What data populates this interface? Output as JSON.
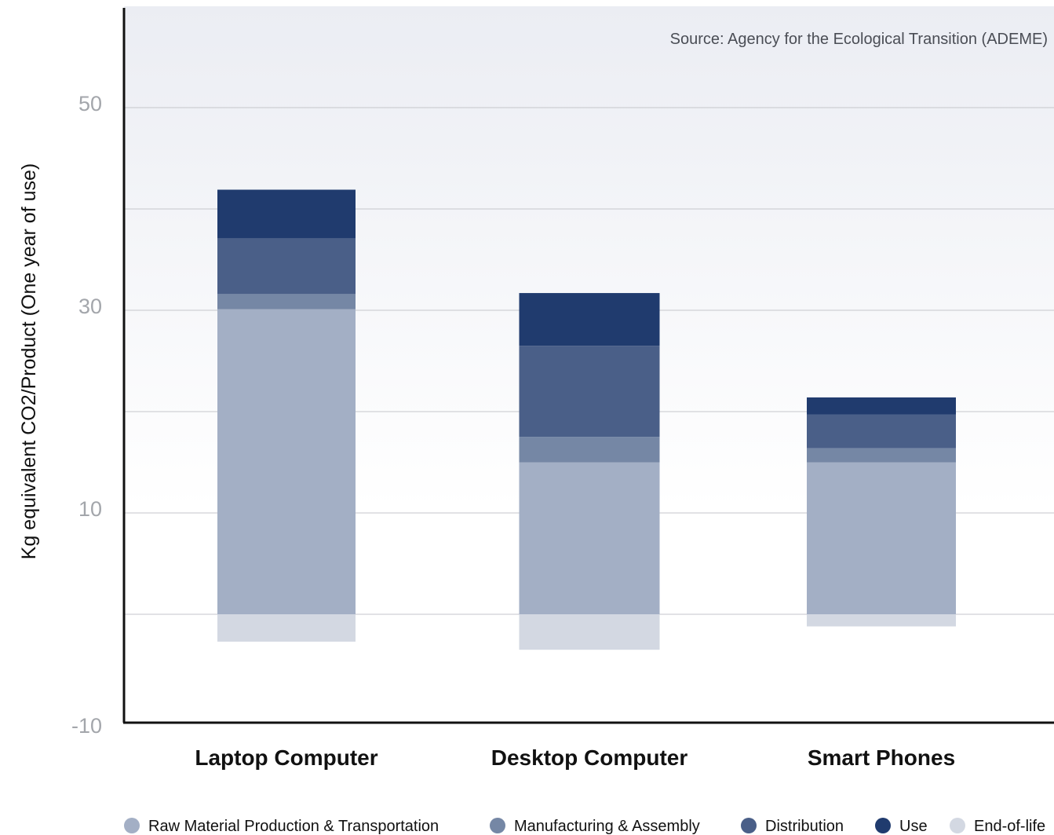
{
  "chart_data": {
    "type": "bar",
    "stacked": true,
    "categories": [
      "Laptop Computer",
      "Desktop Computer",
      "Smart Phones"
    ],
    "series": [
      {
        "name": "Raw Material Production & Transportation",
        "color": "#a3afc5",
        "values": [
          30.1,
          15.0,
          15.0
        ]
      },
      {
        "name": "Manufacturing & Assembly",
        "color": "#7587a5",
        "values": [
          1.5,
          2.5,
          1.4
        ]
      },
      {
        "name": "Distribution",
        "color": "#4a5f88",
        "values": [
          5.5,
          9.0,
          3.3
        ]
      },
      {
        "name": "Use",
        "color": "#203b6e",
        "values": [
          4.8,
          5.2,
          1.7
        ]
      },
      {
        "name": "End-of-life",
        "color": "#d3d8e2",
        "values": [
          -2.7,
          -3.5,
          -1.2
        ]
      }
    ],
    "ylabel": "Kg equivalent CO2/Product (One year of use)",
    "xlabel": "",
    "ylim": [
      -10,
      60
    ],
    "yticks": [
      -10,
      10,
      30,
      50
    ],
    "gridlines": [
      0,
      10,
      20,
      30,
      40,
      50
    ],
    "grid": true,
    "legend": "bottom",
    "source_text": "Source: Agency for the Ecological Transition (ADEME)"
  }
}
